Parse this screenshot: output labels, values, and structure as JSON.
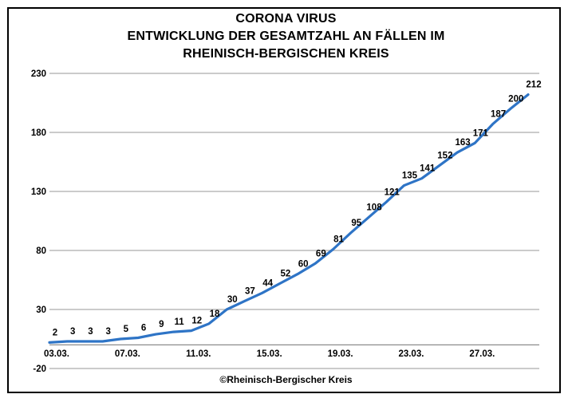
{
  "chart_data": {
    "type": "line",
    "title_lines": [
      "CORONA VIRUS",
      "ENTWICKLUNG DER GESAMTZAHL AN FÄLLEN IM",
      "RHEINISCH-BERGISCHEN KREIS"
    ],
    "values": [
      2,
      3,
      3,
      3,
      5,
      6,
      9,
      11,
      12,
      18,
      30,
      37,
      44,
      52,
      60,
      69,
      81,
      95,
      108,
      121,
      135,
      141,
      152,
      163,
      171,
      187,
      200,
      212
    ],
    "data_labels": [
      "2",
      "3",
      "3",
      "3",
      "5",
      "6",
      "9",
      "11",
      "12",
      "18",
      "30",
      "37",
      "44",
      "52",
      "60",
      "69",
      "81",
      "95",
      "108",
      "121",
      "135",
      "141",
      "152",
      "163",
      "171",
      "187",
      "200",
      "212"
    ],
    "x_tick_labels": [
      "03.03.",
      "07.03.",
      "11.03.",
      "15.03.",
      "19.03.",
      "23.03.",
      "27.03."
    ],
    "x_tick_indices": [
      0,
      4,
      8,
      12,
      16,
      20,
      24
    ],
    "y_ticks": [
      -20,
      30,
      80,
      130,
      180,
      230
    ],
    "ylim": [
      -20,
      230
    ],
    "legend": "none",
    "grid": "horizontal",
    "line_color": "#2E74C6",
    "gridline_color": "#ACACAC",
    "axis_line_color": "#8C8C8C",
    "label_color": "#000000",
    "footer": "©Rheinisch-Bergischer Kreis"
  }
}
